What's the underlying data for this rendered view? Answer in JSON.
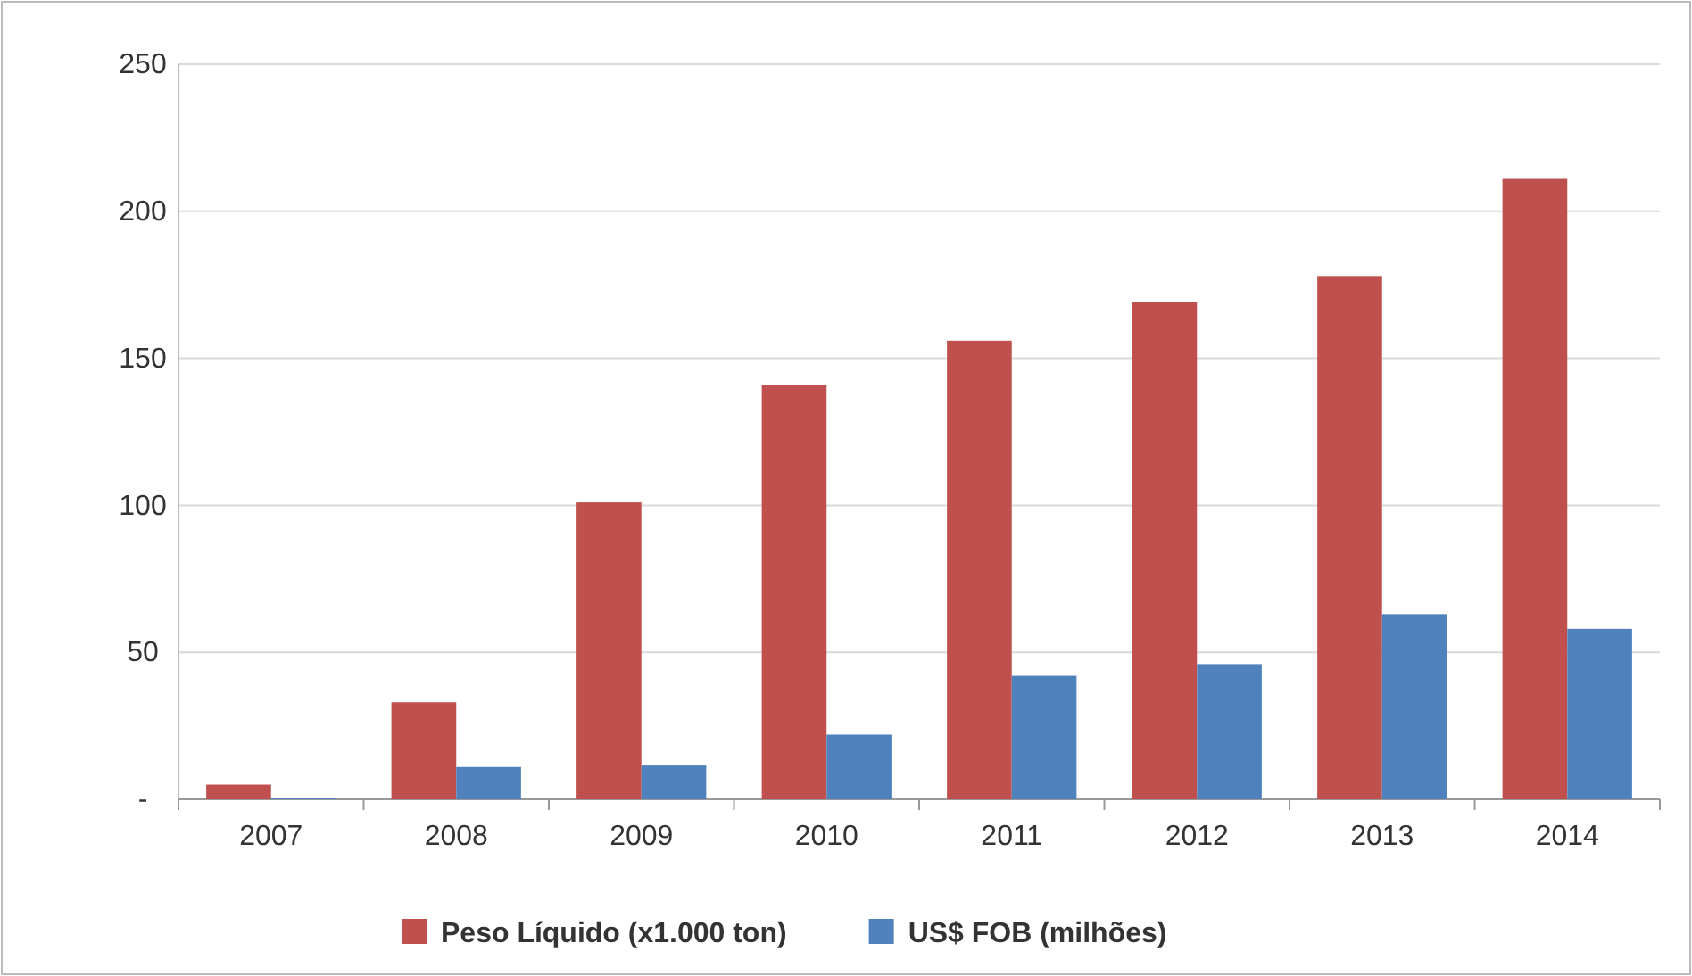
{
  "chart_data": {
    "type": "bar",
    "categories": [
      "2007",
      "2008",
      "2009",
      "2010",
      "2011",
      "2012",
      "2013",
      "2014"
    ],
    "series": [
      {
        "name": "Peso Líquido (x1.000 ton)",
        "color": "#c0504d",
        "values": [
          5,
          33,
          101,
          141,
          156,
          169,
          178,
          211
        ]
      },
      {
        "name": "US$ FOB (milhões)",
        "color": "#4f81bd",
        "values": [
          0.5,
          11,
          11.5,
          22,
          42,
          46,
          63,
          58
        ]
      }
    ],
    "ylim": [
      0,
      250
    ],
    "yticks": [
      {
        "value": 0,
        "label": "-"
      },
      50,
      100,
      150,
      200,
      250
    ],
    "grid": "y",
    "legend": "bottom"
  }
}
